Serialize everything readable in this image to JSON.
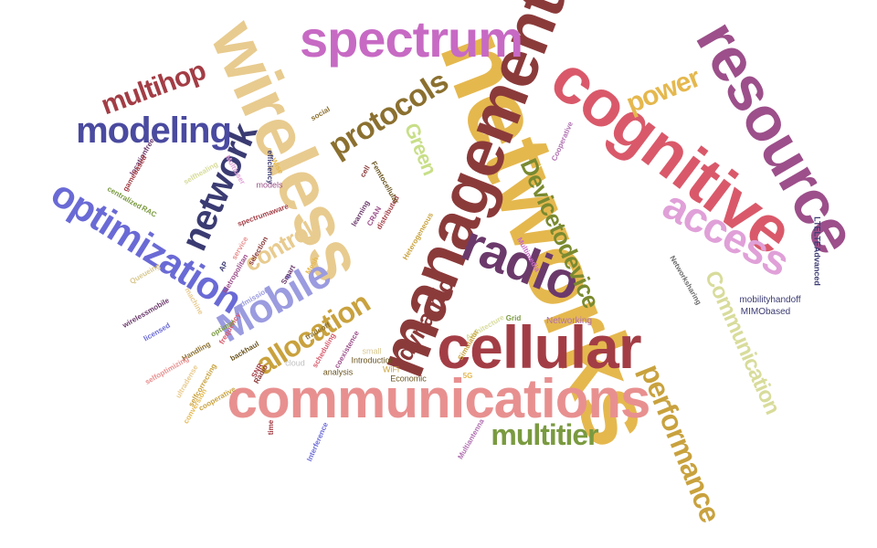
{
  "words": [
    {
      "text": "networks",
      "color": "#e5b84e"
    },
    {
      "text": "management",
      "color": "#8b3a3a"
    },
    {
      "text": "wireless",
      "color": "#e8cb8f"
    },
    {
      "text": "cognitive",
      "color": "#d9596a"
    },
    {
      "text": "communications",
      "color": "#e89090"
    },
    {
      "text": "resource",
      "color": "#9c4f8a"
    },
    {
      "text": "spectrum",
      "color": "#c76ac4"
    },
    {
      "text": "cellular",
      "color": "#a33d45"
    },
    {
      "text": "radio",
      "color": "#6b3a6b"
    },
    {
      "text": "optimization",
      "color": "#6a6ad6"
    },
    {
      "text": "access",
      "color": "#e0a0d8"
    },
    {
      "text": "network",
      "color": "#3b3b73"
    },
    {
      "text": "modeling",
      "color": "#4a4aa0"
    },
    {
      "text": "Mobile",
      "color": "#9b9be0"
    },
    {
      "text": "allocation",
      "color": "#c9a23e"
    },
    {
      "text": "performance",
      "color": "#c9a23e"
    },
    {
      "text": "Communication",
      "color": "#d8dc9b"
    },
    {
      "text": "protocols",
      "color": "#8b7030"
    },
    {
      "text": "multitier",
      "color": "#7a9a40"
    },
    {
      "text": "Devicetodevice",
      "color": "#7a8a30"
    },
    {
      "text": "power",
      "color": "#e5b84e"
    },
    {
      "text": "dynamic",
      "color": "#8b3a3a"
    },
    {
      "text": "control",
      "color": "#e8cb8f"
    },
    {
      "text": "multihop",
      "color": "#a33d45"
    },
    {
      "text": "Green",
      "color": "#c8df88"
    },
    {
      "text": "Networking",
      "color": "#b070b0"
    },
    {
      "text": "mobilityhandoff",
      "color": "#3b3b73"
    },
    {
      "text": "MIMObased",
      "color": "#3b3b73"
    },
    {
      "text": "LTELTEAdvanced",
      "color": "#3b3b73"
    },
    {
      "text": "Introduction",
      "color": "#6b5520"
    },
    {
      "text": "analysis",
      "color": "#6b5520"
    },
    {
      "text": "Economic",
      "color": "#6b5520"
    },
    {
      "text": "WiFi",
      "color": "#c9a23e"
    },
    {
      "text": "small",
      "color": "#d8c890"
    },
    {
      "text": "cloud",
      "color": "#c0c0c0"
    },
    {
      "text": "models",
      "color": "#9c4f8a"
    },
    {
      "text": "social",
      "color": "#8b7030"
    },
    {
      "text": "cell",
      "color": "#8b3a3a"
    },
    {
      "text": "Cooperative",
      "color": "#b070b0"
    },
    {
      "text": "Networksharing",
      "color": "#6a6a6a"
    },
    {
      "text": "Heterogeneous",
      "color": "#c9a23e"
    },
    {
      "text": "Multimedia",
      "color": "#c76ac4"
    },
    {
      "text": "Grid",
      "color": "#7a9a40"
    },
    {
      "text": "Architecture",
      "color": "#d8dc9b"
    },
    {
      "text": "Simulator",
      "color": "#c9a23e"
    },
    {
      "text": "5G",
      "color": "#e5b84e"
    },
    {
      "text": "Multiantenna",
      "color": "#b070b0"
    },
    {
      "text": "coexistence",
      "color": "#9c4f8a"
    },
    {
      "text": "scheduling",
      "color": "#d9596a"
    },
    {
      "text": "Smart",
      "color": "#6b3a6b"
    },
    {
      "text": "Mesh",
      "color": "#e5b84e"
    },
    {
      "text": "admission",
      "color": "#9b9be0"
    },
    {
      "text": "spectrumaware",
      "color": "#a33d45"
    },
    {
      "text": "selection",
      "color": "#8b3a3a"
    },
    {
      "text": "service",
      "color": "#e89090"
    },
    {
      "text": "Interference",
      "color": "#6a6ad6"
    },
    {
      "text": "wirelessmobile",
      "color": "#6b3a6b"
    },
    {
      "text": "machine",
      "color": "#e8cb8f"
    },
    {
      "text": "Handling",
      "color": "#8b7030"
    },
    {
      "text": "RAC",
      "color": "#7a9a40"
    },
    {
      "text": "selfhealing",
      "color": "#d8dc9b"
    },
    {
      "text": "selfcorrecting",
      "color": "#c9a23e"
    },
    {
      "text": "Radio",
      "color": "#8b3a3a"
    },
    {
      "text": "centralized",
      "color": "#7a9a40"
    },
    {
      "text": "frequency",
      "color": "#d9596a"
    },
    {
      "text": "distributed",
      "color": "#a33d45"
    },
    {
      "text": "Femtocellular",
      "color": "#6b5520"
    },
    {
      "text": "CRAN",
      "color": "#9c4f8a"
    },
    {
      "text": "selfoptimizing",
      "color": "#e89090"
    },
    {
      "text": "Multiuser",
      "color": "#e0a0d8"
    },
    {
      "text": "Metropolitan",
      "color": "#9c4f8a"
    },
    {
      "text": "locationfree",
      "color": "#6b3a6b"
    },
    {
      "text": "Queueing",
      "color": "#d8c890"
    },
    {
      "text": "licensed",
      "color": "#6a6ad6"
    },
    {
      "text": "backhaul",
      "color": "#6b5520"
    },
    {
      "text": "time",
      "color": "#a33d45"
    },
    {
      "text": "AP",
      "color": "#3b3b73"
    },
    {
      "text": "SNR",
      "color": "#a33d45"
    },
    {
      "text": "Wise",
      "color": "#e5b84e"
    },
    {
      "text": "ultradense",
      "color": "#e8cb8f"
    },
    {
      "text": "cooperative",
      "color": "#c9a23e"
    },
    {
      "text": "conversion",
      "color": "#e5b84e"
    },
    {
      "text": "optimal",
      "color": "#7a9a40"
    },
    {
      "text": "gamebased",
      "color": "#a33d45"
    },
    {
      "text": "efficiency",
      "color": "#3b3b73"
    },
    {
      "text": "learning",
      "color": "#6b3a6b"
    },
    {
      "text": "tradeoff",
      "color": "#8b7030"
    }
  ]
}
